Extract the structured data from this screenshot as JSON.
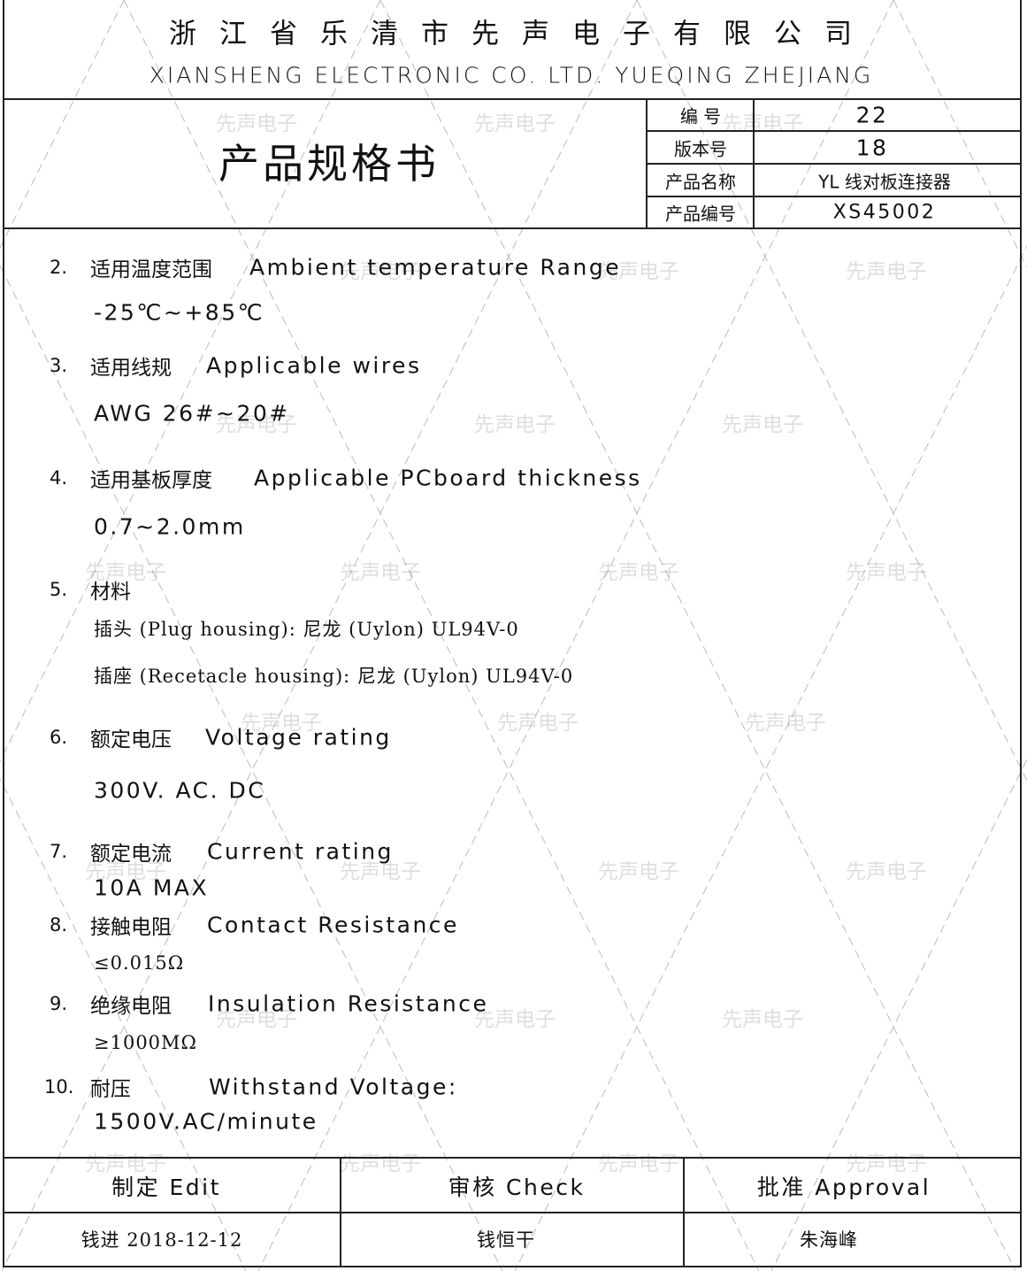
{
  "header": {
    "company_cn": "浙江省乐清市先声电子有限公司",
    "company_en": "XIANSHENG ELECTRONIC CO. LTD. YUEQING ZHEJIANG",
    "doc_title": "产品规格书"
  },
  "info_table": [
    {
      "label": "编 号",
      "value": "22"
    },
    {
      "label": "版本号",
      "value": "18"
    },
    {
      "label": "产品名称",
      "value": "YL  线对板连接器"
    },
    {
      "label": "产品编号",
      "value": "XS45002"
    }
  ],
  "specs": [
    {
      "num": "2.",
      "cn": "适用温度范围",
      "en": "Ambient temperature Range",
      "lines": [
        "-25℃~+85℃"
      ]
    },
    {
      "num": "3.",
      "cn": "适用线规",
      "en": "Applicable wires",
      "lines": [
        "AWG 26#~20#"
      ]
    },
    {
      "num": "4.",
      "cn": "适用基板厚度",
      "en": "Applicable PCboard thickness",
      "lines": [
        "0.7~2.0mm"
      ]
    },
    {
      "num": "5.",
      "cn": "材料",
      "en": "",
      "lines": [
        "插头 (Plug housing): 尼龙 (Uylon) UL94V-0",
        "插座 (Recetacle housing): 尼龙 (Uylon) UL94V-0"
      ]
    },
    {
      "num": "6.",
      "cn": "额定电压",
      "en": "Voltage rating",
      "lines": [
        "300V. AC. DC"
      ]
    },
    {
      "num": "7.",
      "cn": "额定电流",
      "en": "Current rating",
      "lines": [
        "10A   MAX"
      ]
    },
    {
      "num": "8.",
      "cn": "接触电阻",
      "en": "Contact Resistance",
      "lines": [
        "≤0.015Ω"
      ]
    },
    {
      "num": "9.",
      "cn": "绝缘电阻",
      "en": "Insulation Resistance",
      "lines": [
        "≥1000MΩ"
      ]
    },
    {
      "num": "10.",
      "cn": "耐压",
      "en": "Withstand Voltage:",
      "lines": [
        "1500V.AC/minute"
      ]
    }
  ],
  "footer": {
    "headers": [
      "制定  Edit",
      "审核  Check",
      "批准  Approval"
    ],
    "values": [
      "钱进 2018-12-12",
      "钱恒干",
      "朱海峰"
    ]
  },
  "watermark": "先声电子"
}
